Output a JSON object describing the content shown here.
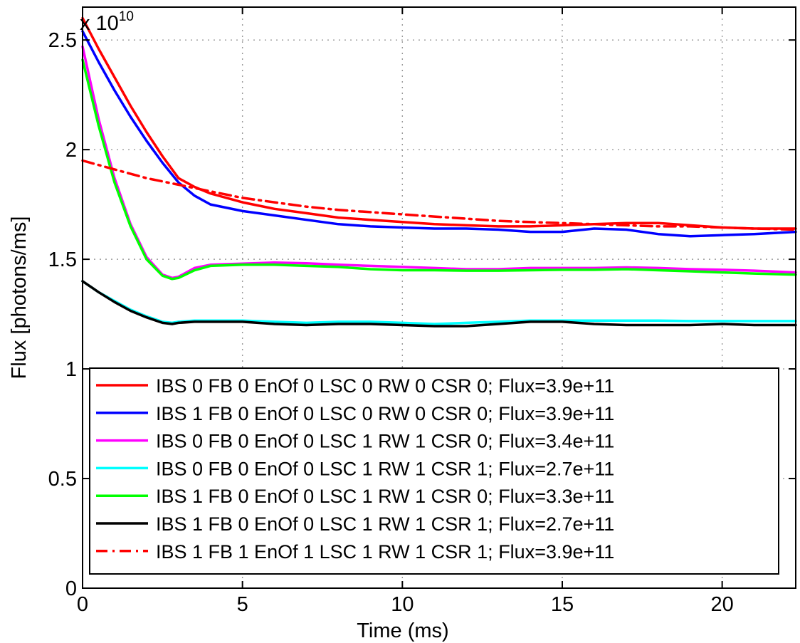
{
  "chart_data": {
    "type": "line",
    "xlabel": "Time (ms)",
    "ylabel": "Flux [photons/ms]",
    "y_multiplier_label": "x 10",
    "y_multiplier_exponent": "10",
    "xlim": [
      0,
      22.3
    ],
    "ylim": [
      0,
      2.65
    ],
    "x_ticks": [
      0,
      5,
      10,
      15,
      20
    ],
    "x_tick_labels": [
      "0",
      "5",
      "10",
      "15",
      "20"
    ],
    "y_ticks": [
      0,
      0.5,
      1,
      1.5,
      2,
      2.5
    ],
    "y_tick_labels": [
      "0",
      "0.5",
      "1",
      "1.5",
      "2",
      "2.5"
    ],
    "grid": true,
    "legend_position": "bottom-left",
    "series": [
      {
        "name": "IBS 0 FB 0 EnOf 0 LSC 0 RW 0 CSR 0; Flux=3.9e+11",
        "color": "#ff0000",
        "dash": "solid",
        "x": [
          0,
          0.5,
          1,
          1.5,
          2,
          2.5,
          3,
          3.5,
          4,
          5,
          6,
          7,
          8,
          9,
          10,
          11,
          12,
          13,
          14,
          15,
          16,
          17,
          18,
          19,
          20,
          21,
          22.3
        ],
        "y": [
          2.6,
          2.46,
          2.33,
          2.2,
          2.08,
          1.97,
          1.87,
          1.83,
          1.8,
          1.76,
          1.73,
          1.71,
          1.69,
          1.68,
          1.67,
          1.66,
          1.655,
          1.65,
          1.65,
          1.655,
          1.66,
          1.665,
          1.665,
          1.655,
          1.645,
          1.64,
          1.64
        ]
      },
      {
        "name": "IBS 1 FB 0 EnOf 0 LSC 0 RW 0 CSR 0; Flux=3.9e+11",
        "color": "#0000ff",
        "dash": "solid",
        "x": [
          0,
          0.5,
          1,
          1.5,
          2,
          2.5,
          3,
          3.5,
          4,
          5,
          6,
          7,
          8,
          9,
          10,
          11,
          12,
          13,
          14,
          15,
          16,
          17,
          18,
          19,
          20,
          21,
          22.3
        ],
        "y": [
          2.54,
          2.4,
          2.27,
          2.15,
          2.04,
          1.94,
          1.85,
          1.79,
          1.75,
          1.72,
          1.7,
          1.68,
          1.66,
          1.65,
          1.645,
          1.64,
          1.64,
          1.635,
          1.625,
          1.625,
          1.64,
          1.635,
          1.615,
          1.605,
          1.61,
          1.615,
          1.625
        ]
      },
      {
        "name": "IBS 0 FB 0 EnOf 0 LSC 1 RW 1 CSR 0; Flux=3.4e+11",
        "color": "#ff00ff",
        "dash": "solid",
        "x": [
          0,
          0.5,
          1,
          1.5,
          2,
          2.5,
          2.8,
          3,
          3.5,
          4,
          5,
          6,
          7,
          8,
          9,
          10,
          11,
          12,
          13,
          14,
          15,
          16,
          17,
          18,
          19,
          20,
          21,
          22.3
        ],
        "y": [
          2.47,
          2.14,
          1.87,
          1.66,
          1.51,
          1.43,
          1.415,
          1.42,
          1.46,
          1.475,
          1.48,
          1.485,
          1.482,
          1.475,
          1.47,
          1.465,
          1.46,
          1.455,
          1.455,
          1.46,
          1.46,
          1.46,
          1.463,
          1.46,
          1.455,
          1.452,
          1.448,
          1.44
        ]
      },
      {
        "name": "IBS 0 FB 0 EnOf 0 LSC 1 RW 1 CSR 1; Flux=2.7e+11",
        "color": "#00ffff",
        "dash": "solid",
        "x": [
          0,
          0.5,
          1,
          1.5,
          2,
          2.5,
          2.8,
          3,
          3.5,
          4,
          5,
          6,
          7,
          8,
          9,
          10,
          11,
          12,
          13,
          14,
          15,
          16,
          17,
          18,
          19,
          20,
          21,
          22.3
        ],
        "y": [
          1.4,
          1.35,
          1.31,
          1.27,
          1.24,
          1.215,
          1.21,
          1.215,
          1.22,
          1.22,
          1.22,
          1.215,
          1.21,
          1.215,
          1.215,
          1.21,
          1.205,
          1.21,
          1.215,
          1.22,
          1.22,
          1.22,
          1.22,
          1.22,
          1.218,
          1.218,
          1.218,
          1.218
        ]
      },
      {
        "name": "IBS 1 FB 0 EnOf 0 LSC 1 RW 1 CSR 0; Flux=3.3e+11",
        "color": "#00ff00",
        "dash": "solid",
        "x": [
          0,
          0.5,
          1,
          1.5,
          2,
          2.5,
          2.8,
          3,
          3.5,
          4,
          5,
          6,
          7,
          8,
          9,
          10,
          11,
          12,
          13,
          14,
          15,
          16,
          17,
          18,
          19,
          20,
          21,
          22.3
        ],
        "y": [
          2.41,
          2.11,
          1.85,
          1.65,
          1.5,
          1.425,
          1.41,
          1.415,
          1.45,
          1.47,
          1.475,
          1.475,
          1.47,
          1.465,
          1.455,
          1.45,
          1.45,
          1.448,
          1.448,
          1.45,
          1.452,
          1.452,
          1.455,
          1.45,
          1.445,
          1.44,
          1.435,
          1.43
        ]
      },
      {
        "name": "IBS 1 FB 0 EnOf 0 LSC 1 RW 1 CSR 1; Flux=2.7e+11",
        "color": "#000000",
        "dash": "solid",
        "x": [
          0,
          0.5,
          1,
          1.5,
          2,
          2.5,
          2.8,
          3,
          3.5,
          4,
          5,
          6,
          7,
          8,
          9,
          10,
          11,
          12,
          13,
          14,
          15,
          16,
          17,
          18,
          19,
          20,
          21,
          22.3
        ],
        "y": [
          1.4,
          1.35,
          1.305,
          1.265,
          1.235,
          1.21,
          1.205,
          1.21,
          1.215,
          1.215,
          1.215,
          1.205,
          1.2,
          1.205,
          1.205,
          1.2,
          1.195,
          1.195,
          1.205,
          1.215,
          1.215,
          1.205,
          1.2,
          1.2,
          1.2,
          1.205,
          1.2,
          1.2
        ]
      },
      {
        "name": "IBS 1 FB 1 EnOf 1 LSC 1 RW 1 CSR 1; Flux=3.9e+11",
        "color": "#ff0000",
        "dash": "dashdot",
        "x": [
          0,
          1,
          2,
          3,
          4,
          5,
          6,
          7,
          8,
          9,
          10,
          11,
          12,
          13,
          14,
          15,
          16,
          17,
          18,
          19,
          20,
          21,
          22.3
        ],
        "y": [
          1.95,
          1.91,
          1.87,
          1.84,
          1.81,
          1.78,
          1.76,
          1.74,
          1.725,
          1.715,
          1.705,
          1.695,
          1.685,
          1.675,
          1.67,
          1.665,
          1.66,
          1.655,
          1.65,
          1.65,
          1.645,
          1.64,
          1.635
        ]
      }
    ]
  }
}
